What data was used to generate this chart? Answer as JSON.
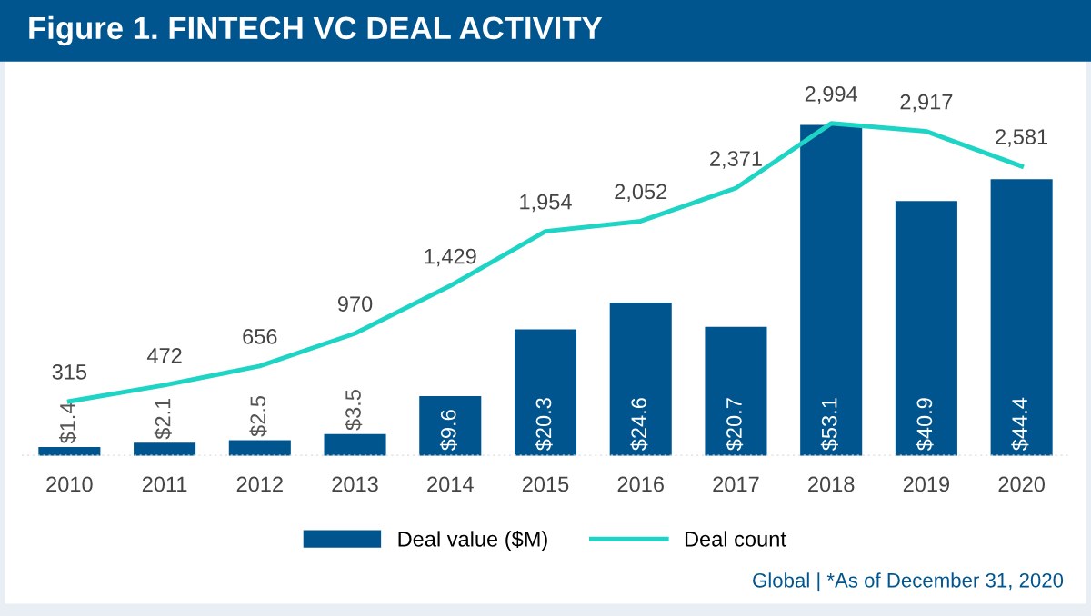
{
  "chart_data": {
    "type": "bar",
    "title": "Figure 1. FINTECH VC DEAL ACTIVITY",
    "categories": [
      "2010",
      "2011",
      "2012",
      "2013",
      "2014",
      "2015",
      "2016",
      "2017",
      "2018",
      "2019",
      "2020"
    ],
    "series": [
      {
        "name": "Deal value ($M)",
        "color": "#00558f",
        "values": [
          1.4,
          2.1,
          2.5,
          3.5,
          9.6,
          20.3,
          24.6,
          20.7,
          53.1,
          40.9,
          44.4
        ],
        "value_labels": [
          "$1.4",
          "$2.1",
          "$2.5",
          "$3.5",
          "$9.6",
          "$20.3",
          "$24.6",
          "$20.7",
          "$53.1",
          "$40.9",
          "$44.4"
        ]
      },
      {
        "name": "Deal count",
        "type": "line",
        "axis": "y2",
        "color": "#1ed4c4",
        "values": [
          315,
          472,
          656,
          970,
          1429,
          1954,
          2052,
          2371,
          2994,
          2917,
          2581
        ],
        "value_labels": [
          "315",
          "472",
          "656",
          "970",
          "1,429",
          "1,954",
          "2,052",
          "2,371",
          "2,994",
          "2,917",
          "2,581"
        ]
      }
    ],
    "legend": "bottom",
    "grid": false,
    "tick_labels": "x",
    "annotations": [
      "Global | *As of December 31, 2020"
    ]
  }
}
